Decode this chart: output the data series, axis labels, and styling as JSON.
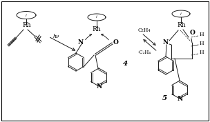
{
  "background_color": "#ffffff",
  "border_color": "#000000",
  "line_color": "#1a1a1a",
  "line_width": 0.7,
  "text_color": "#000000",
  "fs_small": 5.0,
  "fs_med": 5.5,
  "fs_large": 6.5,
  "fs_num": 7.5,
  "rh_label": "Rh",
  "hv_label": "hν",
  "c2h4_label": "C₂H₄",
  "minus_c2h4_label": "-C₂H₄",
  "N_label": "N",
  "O_label": "O",
  "num4_label": "4",
  "num5_label": "5",
  "H_label": "H",
  "i_label": "i"
}
